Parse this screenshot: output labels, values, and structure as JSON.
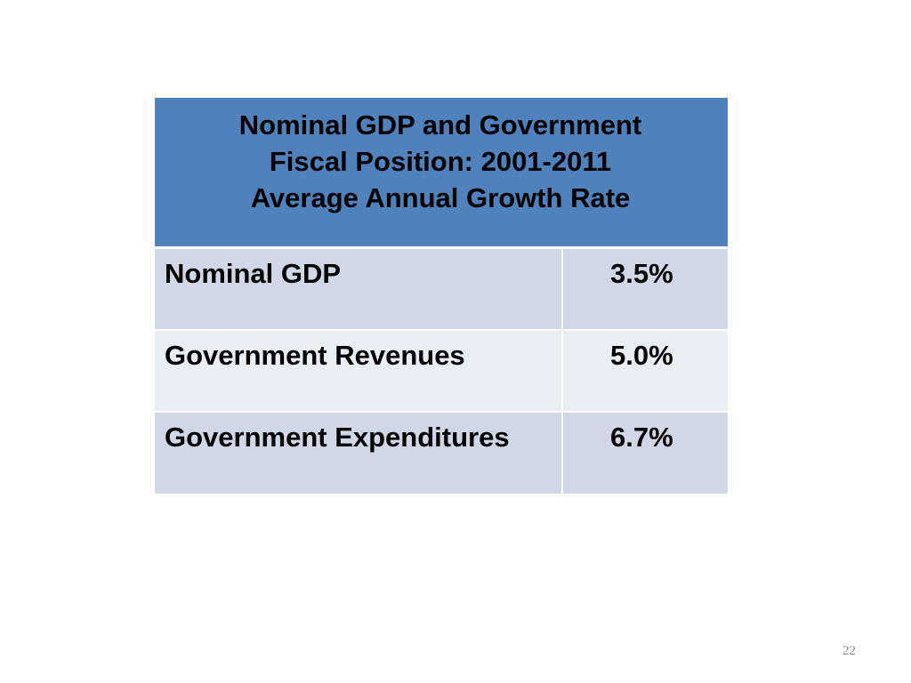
{
  "chart_data": {
    "type": "table",
    "title_lines": [
      "Nominal GDP and Government",
      "Fiscal Position: 2001-2011",
      "Average Annual Growth Rate"
    ],
    "rows": [
      {
        "label": "Nominal GDP",
        "value": "3.5%"
      },
      {
        "label": "Government Revenues",
        "value": "5.0%"
      },
      {
        "label": "Government Expenditures",
        "value": "6.7%"
      }
    ]
  },
  "colors": {
    "header_bg": "#4f81bd",
    "row_band_dark": "#d0d8e8",
    "row_band_light": "#e9edf4"
  },
  "page_number": "22"
}
